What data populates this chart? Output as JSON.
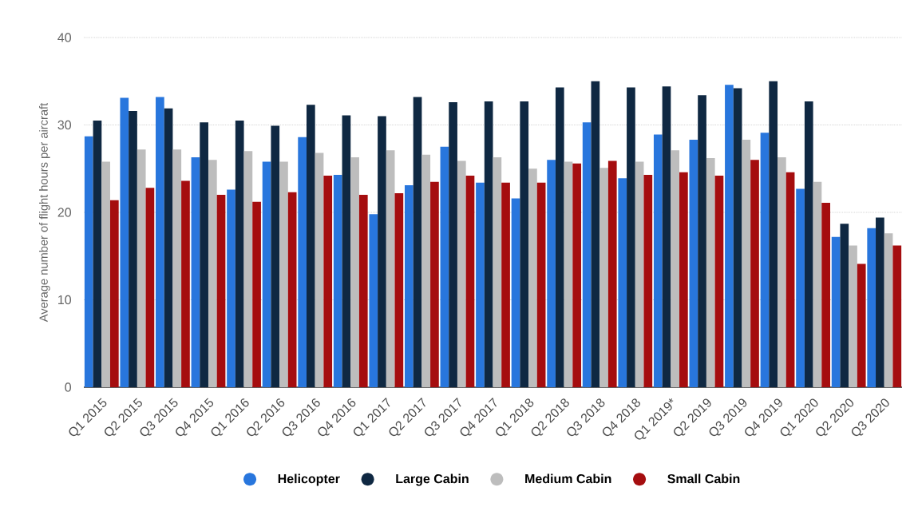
{
  "chart_data": {
    "type": "bar",
    "ylabel": "Average number of flight hours per aircraft",
    "categories": [
      "Q1 2015",
      "Q2 2015",
      "Q3 2015",
      "Q4 2015",
      "Q1 2016",
      "Q2 2016",
      "Q3 2016",
      "Q4 2016",
      "Q1 2017",
      "Q2 2017",
      "Q3 2017",
      "Q4 2017",
      "Q1 2018",
      "Q2 2018",
      "Q3 2018",
      "Q4 2018",
      "Q1 2019*",
      "Q2 2019",
      "Q3 2019",
      "Q4 2019",
      "Q1 2020",
      "Q2 2020",
      "Q3 2020"
    ],
    "series": [
      {
        "name": "Helicopter",
        "color": "#2876dd",
        "values": [
          28.7,
          33.1,
          33.2,
          26.3,
          22.6,
          25.8,
          28.6,
          24.3,
          19.8,
          23.1,
          27.5,
          23.4,
          21.6,
          26.0,
          30.3,
          23.9,
          28.9,
          28.3,
          34.6,
          29.1,
          22.7,
          17.2,
          18.2
        ]
      },
      {
        "name": "Large Cabin",
        "color": "#0f2842",
        "values": [
          30.5,
          31.6,
          31.9,
          30.3,
          30.5,
          29.9,
          32.3,
          31.1,
          31.0,
          33.2,
          32.6,
          32.7,
          32.7,
          34.3,
          35.0,
          34.3,
          34.4,
          33.4,
          34.2,
          35.0,
          32.7,
          18.7,
          19.4
        ]
      },
      {
        "name": "Medium Cabin",
        "color": "#bdbdbd",
        "values": [
          25.8,
          27.2,
          27.2,
          26.0,
          27.0,
          25.8,
          26.8,
          26.3,
          27.1,
          26.6,
          25.9,
          26.3,
          25.0,
          25.8,
          25.1,
          25.8,
          27.1,
          26.2,
          28.3,
          26.3,
          23.5,
          16.2,
          17.6
        ]
      },
      {
        "name": "Small Cabin",
        "color": "#a50d0f",
        "values": [
          21.4,
          22.8,
          23.6,
          22.0,
          21.2,
          22.3,
          24.2,
          22.0,
          22.2,
          23.5,
          24.2,
          23.4,
          23.4,
          25.6,
          25.9,
          24.3,
          24.6,
          24.2,
          26.0,
          24.6,
          21.1,
          14.1,
          16.2
        ]
      }
    ],
    "ylim": [
      0,
      40
    ],
    "yticks": [
      0,
      10,
      20,
      30,
      40
    ],
    "grid": "y",
    "legend": "bottom"
  }
}
